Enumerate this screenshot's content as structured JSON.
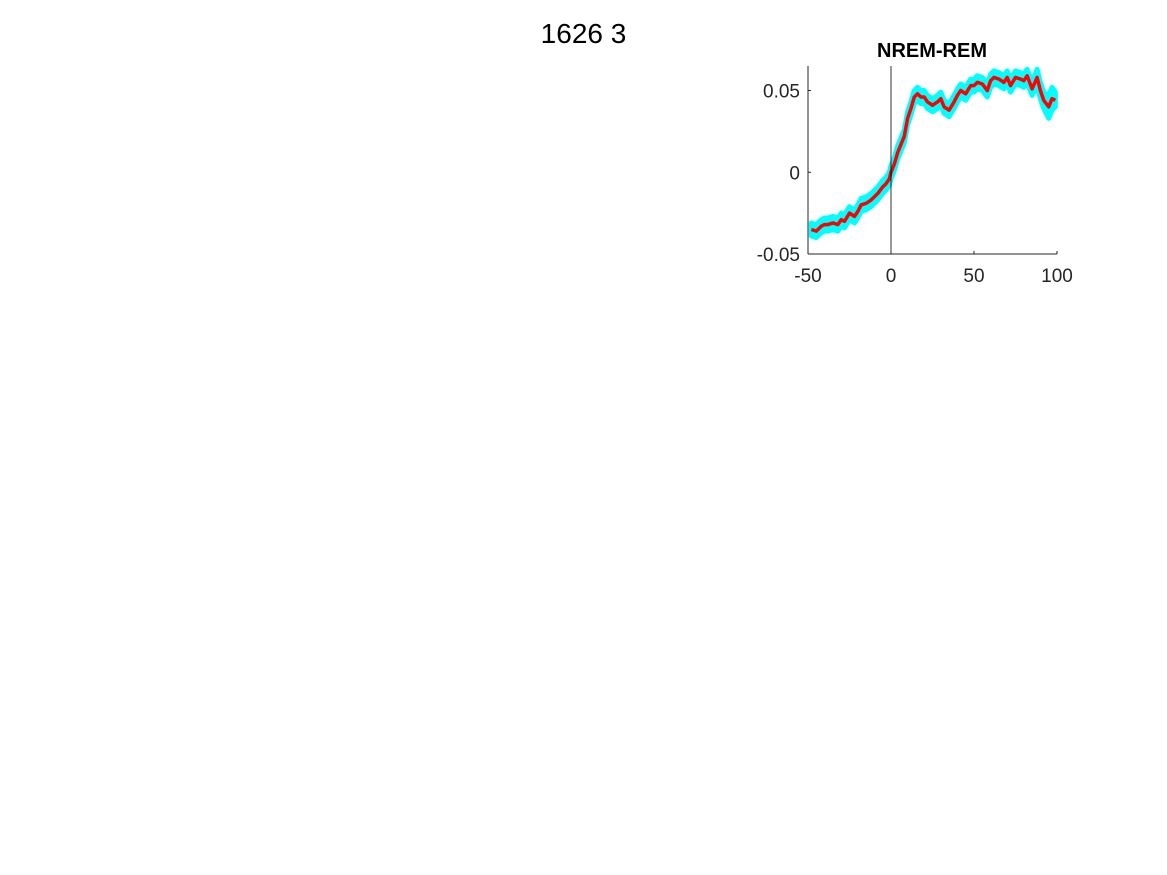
{
  "figure": {
    "title": "1626 3"
  },
  "colors": {
    "mean": "#ff0000",
    "band": "#00ffff",
    "axis": "#262626",
    "zero_line": "#000000"
  },
  "chart_data": {
    "type": "line",
    "title": "NREM-REM",
    "xlabel": "",
    "ylabel": "",
    "xlim": [
      -50,
      100
    ],
    "ylim": [
      -0.05,
      0.065
    ],
    "x_ticks": [
      -50,
      0,
      50,
      100
    ],
    "x_tick_labels": [
      "-50",
      "0",
      "50",
      "100"
    ],
    "y_ticks": [
      -0.05,
      0,
      0.05
    ],
    "y_tick_labels": [
      "-0.05",
      "0",
      "0.05"
    ],
    "vertical_line_x": 0,
    "grid": false,
    "legend": "none",
    "x": [
      -48,
      -45,
      -42,
      -40,
      -38,
      -35,
      -32,
      -30,
      -28,
      -25,
      -22,
      -20,
      -18,
      -15,
      -12,
      -10,
      -8,
      -5,
      -3,
      -1,
      0,
      2,
      4,
      6,
      8,
      10,
      12,
      14,
      16,
      18,
      20,
      22,
      25,
      28,
      30,
      32,
      35,
      38,
      40,
      42,
      45,
      48,
      50,
      52,
      55,
      58,
      60,
      62,
      65,
      68,
      70,
      72,
      75,
      78,
      80,
      82,
      85,
      88,
      90,
      92,
      95,
      97,
      99
    ],
    "series": [
      {
        "values": [
          -0.035,
          -0.036,
          -0.033,
          -0.032,
          -0.032,
          -0.031,
          -0.032,
          -0.029,
          -0.03,
          -0.025,
          -0.027,
          -0.024,
          -0.02,
          -0.019,
          -0.017,
          -0.015,
          -0.013,
          -0.009,
          -0.007,
          -0.004,
          0.0,
          0.005,
          0.012,
          0.017,
          0.022,
          0.033,
          0.039,
          0.046,
          0.048,
          0.046,
          0.046,
          0.043,
          0.041,
          0.043,
          0.045,
          0.04,
          0.038,
          0.043,
          0.047,
          0.05,
          0.048,
          0.053,
          0.053,
          0.055,
          0.054,
          0.05,
          0.056,
          0.058,
          0.057,
          0.055,
          0.058,
          0.053,
          0.058,
          0.057,
          0.056,
          0.059,
          0.051,
          0.058,
          0.05,
          0.044,
          0.04,
          0.045,
          0.044
        ],
        "ci_lower": [
          -0.039,
          -0.04,
          -0.037,
          -0.036,
          -0.036,
          -0.035,
          -0.036,
          -0.033,
          -0.034,
          -0.029,
          -0.031,
          -0.028,
          -0.024,
          -0.023,
          -0.021,
          -0.019,
          -0.017,
          -0.013,
          -0.011,
          -0.008,
          -0.004,
          0.001,
          0.008,
          0.013,
          0.018,
          0.029,
          0.035,
          0.042,
          0.044,
          0.042,
          0.042,
          0.039,
          0.037,
          0.039,
          0.041,
          0.036,
          0.034,
          0.039,
          0.043,
          0.046,
          0.044,
          0.049,
          0.049,
          0.051,
          0.05,
          0.046,
          0.052,
          0.054,
          0.053,
          0.051,
          0.054,
          0.049,
          0.054,
          0.053,
          0.052,
          0.055,
          0.047,
          0.053,
          0.045,
          0.039,
          0.033,
          0.038,
          0.04
        ],
        "ci_upper": [
          -0.031,
          -0.032,
          -0.029,
          -0.028,
          -0.028,
          -0.027,
          -0.028,
          -0.025,
          -0.026,
          -0.021,
          -0.023,
          -0.02,
          -0.016,
          -0.015,
          -0.013,
          -0.011,
          -0.009,
          -0.005,
          -0.003,
          0.0,
          0.004,
          0.009,
          0.016,
          0.021,
          0.026,
          0.037,
          0.043,
          0.05,
          0.052,
          0.05,
          0.05,
          0.047,
          0.045,
          0.047,
          0.049,
          0.044,
          0.042,
          0.047,
          0.051,
          0.054,
          0.052,
          0.057,
          0.057,
          0.059,
          0.058,
          0.054,
          0.06,
          0.062,
          0.061,
          0.059,
          0.062,
          0.057,
          0.062,
          0.061,
          0.06,
          0.063,
          0.055,
          0.063,
          0.055,
          0.049,
          0.047,
          0.052,
          0.049
        ]
      }
    ]
  }
}
